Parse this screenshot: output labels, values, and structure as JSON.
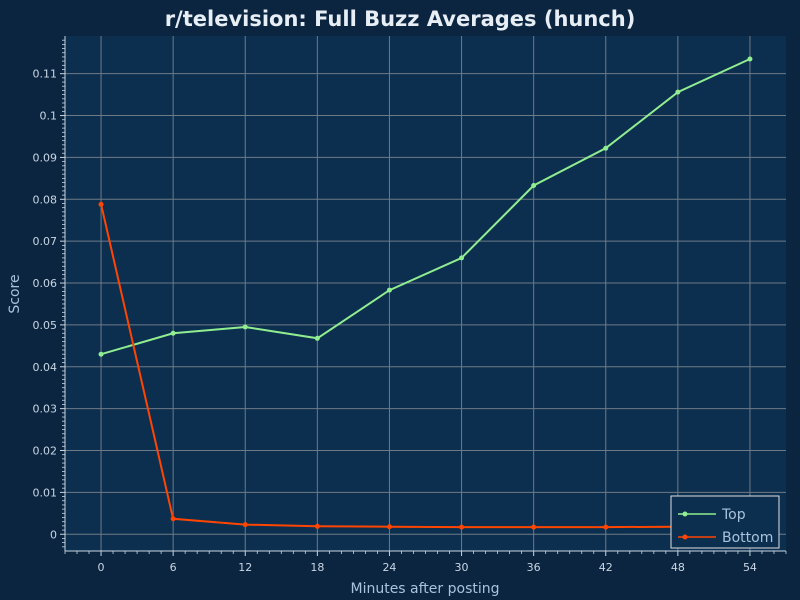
{
  "chart_data": {
    "type": "line",
    "title": "r/television: Full Buzz Averages (hunch)",
    "xlabel": "Minutes after posting",
    "ylabel": "Score",
    "x": [
      0,
      6,
      12,
      18,
      24,
      30,
      36,
      42,
      48,
      54
    ],
    "xlim": [
      -3,
      57
    ],
    "ylim": [
      -0.004,
      0.119
    ],
    "y_ticks": [
      0,
      0.01,
      0.02,
      0.03,
      0.04,
      0.05,
      0.06,
      0.07,
      0.08,
      0.09,
      0.1,
      0.11
    ],
    "y_tick_labels": [
      "0",
      "0.01",
      "0.02",
      "0.03",
      "0.04",
      "0.05",
      "0.06",
      "0.07",
      "0.08",
      "0.09",
      "0.1",
      "0.11"
    ],
    "x_tick_labels": [
      "0",
      "6",
      "12",
      "18",
      "24",
      "30",
      "36",
      "42",
      "48",
      "54"
    ],
    "grid": true,
    "legend_position": "bottom-right",
    "series": [
      {
        "name": "Top",
        "color": "#90ee90",
        "values": [
          0.043,
          0.048,
          0.0495,
          0.0468,
          0.0583,
          0.066,
          0.0833,
          0.0922,
          0.1056,
          0.1135
        ]
      },
      {
        "name": "Bottom",
        "color": "#ff4500",
        "values": [
          0.0788,
          0.0037,
          0.0023,
          0.0019,
          0.0018,
          0.0017,
          0.0017,
          0.0017,
          0.0018,
          0.0018
        ]
      }
    ]
  },
  "colors": {
    "background": "#0b2540",
    "plot_area": "#0d2f4f",
    "grid": "#6e7a86",
    "axis": "#c9d6e3"
  }
}
